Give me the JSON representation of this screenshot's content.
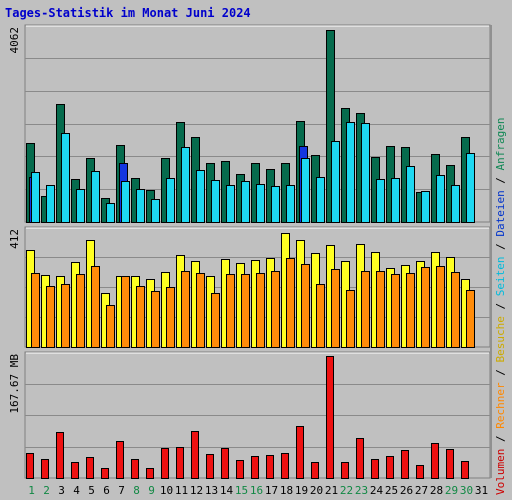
{
  "title": "Tages-Statistik im Monat Juni 2024",
  "chart_data": {
    "type": "bar",
    "title": "Tages-Statistik im Monat Juni 2024",
    "categories": [
      "1",
      "2",
      "3",
      "4",
      "5",
      "6",
      "7",
      "8",
      "9",
      "10",
      "11",
      "12",
      "13",
      "14",
      "15",
      "16",
      "17",
      "18",
      "19",
      "20",
      "21",
      "22",
      "23",
      "24",
      "25",
      "26",
      "27",
      "28",
      "29",
      "30",
      "31"
    ],
    "weekend_days": [
      1,
      2,
      8,
      9,
      15,
      16,
      22,
      23,
      29,
      30
    ],
    "colors": {
      "anfragen": "#066b4d",
      "dateien": "#1436e0",
      "seiten": "#1ed8f2",
      "besuche": "#ffff22",
      "rechner": "#ff8c0a",
      "volumen": "#ee1111",
      "weekday_label": "#000000",
      "weekend_label": "#118844",
      "background": "#c0c0c0"
    },
    "panels": [
      {
        "id": "top",
        "ymax_label": "4062",
        "ymax": 4062,
        "series": [
          {
            "name": "Anfragen",
            "values": [
              1660,
              550,
              2480,
              910,
              1340,
              510,
              1620,
              920,
              680,
              1340,
              2110,
              1790,
              1250,
              1290,
              1000,
              1240,
              1110,
              1250,
              2120,
              1420,
              4050,
              2390,
              2290,
              1370,
              1590,
              1580,
              630,
              1440,
              1210,
              1780,
              0
            ]
          },
          {
            "name": "Dateien",
            "values": [
              950,
              0,
              0,
              0,
              0,
              0,
              1250,
              0,
              0,
              0,
              0,
              0,
              0,
              0,
              0,
              0,
              0,
              0,
              1610,
              0,
              0,
              0,
              0,
              0,
              0,
              0,
              0,
              0,
              0,
              0,
              0
            ]
          },
          {
            "name": "Seiten",
            "values": [
              1060,
              780,
              1880,
              700,
              1080,
              390,
              860,
              700,
              480,
              920,
              1580,
              1100,
              890,
              770,
              870,
              810,
              760,
              780,
              1340,
              950,
              1710,
              2110,
              2080,
              910,
              920,
              1170,
              650,
              990,
              770,
              1450,
              0
            ]
          }
        ]
      },
      {
        "id": "mid",
        "ymax_label": "412",
        "ymax": 412,
        "series": [
          {
            "name": "Besuche",
            "values": [
              345,
              255,
              252,
              303,
              380,
              192,
              253,
              252,
              242,
              268,
              328,
              305,
              252,
              313,
              300,
              308,
              316,
              405,
              380,
              333,
              362,
              305,
              365,
              336,
              280,
              290,
              307,
              336,
              319,
              242,
              0
            ]
          },
          {
            "name": "Rechner",
            "values": [
              262,
              218,
              225,
              258,
              287,
              150,
              253,
              218,
              200,
              212,
              270,
              263,
              192,
              258,
              260,
              262,
              271,
              316,
              296,
              224,
              277,
              204,
              271,
              270,
              260,
              262,
              283,
              287,
              267,
              204,
              0
            ]
          }
        ]
      },
      {
        "id": "bot",
        "ymax_label": "167.67 MB",
        "ymax": 167.67,
        "series": [
          {
            "name": "Volumen",
            "values": [
              35,
              26,
              63,
              22,
              29,
              14,
              51,
              26,
              14,
              41,
              43,
              64,
              33,
              41,
              25,
              30,
              31,
              34,
              71,
              22,
              167,
              22,
              55,
              26,
              30,
              39,
              18,
              48,
              40,
              24,
              0
            ]
          }
        ]
      }
    ],
    "right_legend": [
      {
        "text": "Volumen",
        "color": "#cc0000"
      },
      {
        "text": " / ",
        "color": "#000000"
      },
      {
        "text": "Rechner",
        "color": "#ff8800"
      },
      {
        "text": " / ",
        "color": "#000000"
      },
      {
        "text": "Besuche",
        "color": "#ccaa00"
      },
      {
        "text": " / ",
        "color": "#000000"
      },
      {
        "text": "Seiten",
        "color": "#00bbdd"
      },
      {
        "text": " / ",
        "color": "#000000"
      },
      {
        "text": "Dateien",
        "color": "#0033cc"
      },
      {
        "text": " / ",
        "color": "#000000"
      },
      {
        "text": "Anfragen",
        "color": "#118855"
      }
    ]
  }
}
